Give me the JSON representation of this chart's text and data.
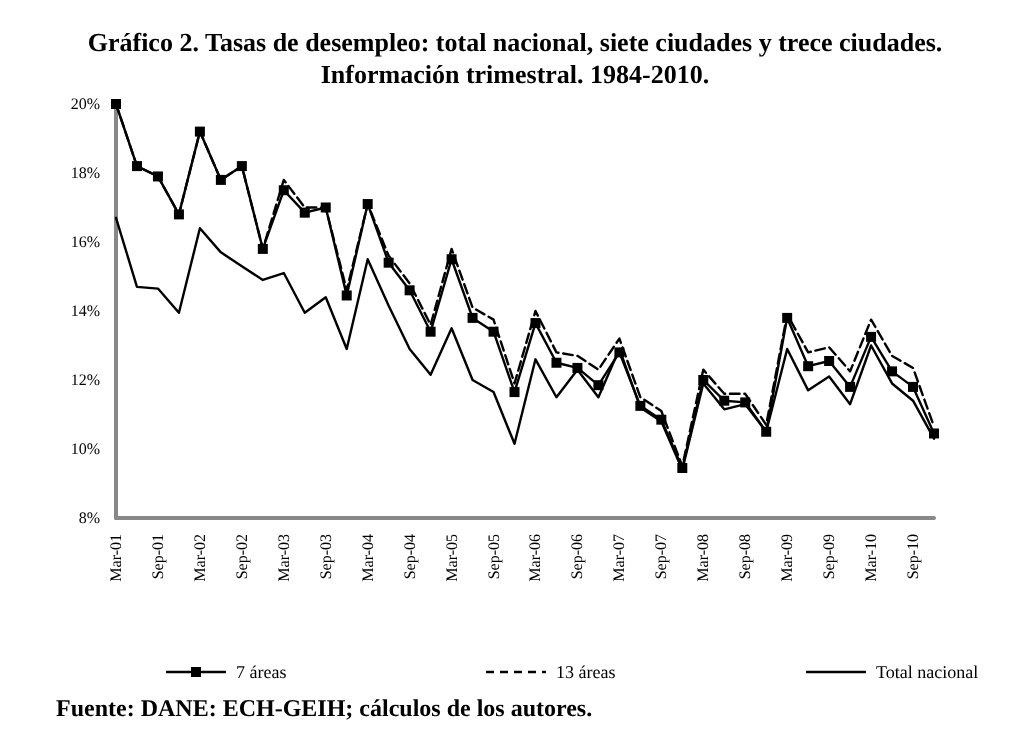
{
  "chart_data": {
    "type": "line",
    "title": "Gráfico 2. Tasas de desempleo: total nacional, siete ciudades y trece ciudades.\nInformación trimestral. 1984-2010.",
    "categories": [
      "Mar-01",
      null,
      "Sep-01",
      null,
      "Mar-02",
      null,
      "Sep-02",
      null,
      "Mar-03",
      null,
      "Sep-03",
      null,
      "Mar-04",
      null,
      "Sep-04",
      null,
      "Mar-05",
      null,
      "Sep-05",
      null,
      "Mar-06",
      null,
      "Sep-06",
      null,
      "Mar-07",
      null,
      "Sep-07",
      null,
      "Mar-08",
      null,
      "Sep-08",
      null,
      "Mar-09",
      null,
      "Sep-09",
      null,
      "Mar-10",
      null,
      "Sep-10",
      null
    ],
    "series": [
      {
        "name": "7 áreas",
        "color": "#000000",
        "marker": "square",
        "line_style": "solid",
        "values": [
          20.0,
          18.2,
          17.9,
          16.8,
          19.2,
          17.8,
          18.2,
          15.8,
          17.5,
          16.85,
          17.0,
          14.45,
          17.1,
          15.4,
          14.6,
          13.4,
          15.5,
          13.8,
          13.4,
          11.65,
          13.65,
          12.5,
          12.35,
          11.85,
          12.8,
          11.25,
          10.85,
          9.45,
          12.0,
          11.4,
          11.35,
          10.5,
          13.8,
          12.4,
          12.55,
          11.8,
          13.25,
          12.25,
          11.8,
          10.45
        ]
      },
      {
        "name": "13 áreas",
        "color": "#000000",
        "marker": "none",
        "line_style": "dashed",
        "values": [
          20.0,
          18.2,
          17.9,
          16.8,
          19.2,
          17.8,
          18.2,
          15.8,
          17.8,
          17.0,
          17.0,
          14.6,
          17.1,
          15.6,
          14.8,
          13.6,
          15.8,
          14.1,
          13.75,
          11.9,
          14.0,
          12.8,
          12.7,
          12.3,
          13.2,
          11.5,
          11.1,
          9.5,
          12.3,
          11.6,
          11.6,
          10.7,
          13.9,
          12.8,
          12.95,
          12.25,
          13.75,
          12.7,
          12.35,
          10.65
        ]
      },
      {
        "name": "Total nacional",
        "color": "#000000",
        "marker": "none",
        "line_style": "solid",
        "values": [
          16.7,
          14.7,
          14.65,
          13.95,
          16.4,
          15.7,
          15.3,
          14.9,
          15.1,
          13.95,
          14.4,
          12.9,
          15.5,
          14.15,
          12.9,
          12.15,
          13.5,
          12.0,
          11.65,
          10.15,
          12.6,
          11.5,
          12.3,
          11.5,
          12.9,
          11.2,
          10.8,
          9.4,
          11.9,
          11.15,
          11.3,
          10.5,
          12.9,
          11.7,
          12.1,
          11.3,
          13.0,
          11.9,
          11.4,
          10.3
        ]
      }
    ],
    "ylim": [
      8,
      20
    ],
    "yticks": [
      {
        "value": 8,
        "label": "8%"
      },
      {
        "value": 10,
        "label": "10%"
      },
      {
        "value": 12,
        "label": "12%"
      },
      {
        "value": 14,
        "label": "14%"
      },
      {
        "value": 16,
        "label": "16%"
      },
      {
        "value": 18,
        "label": "18%"
      },
      {
        "value": 20,
        "label": "20%"
      }
    ],
    "grid": false,
    "legend": "bottom",
    "annotations": [
      "Fuente: DANE: ECH-GEIH; cálculos de los autores."
    ]
  }
}
